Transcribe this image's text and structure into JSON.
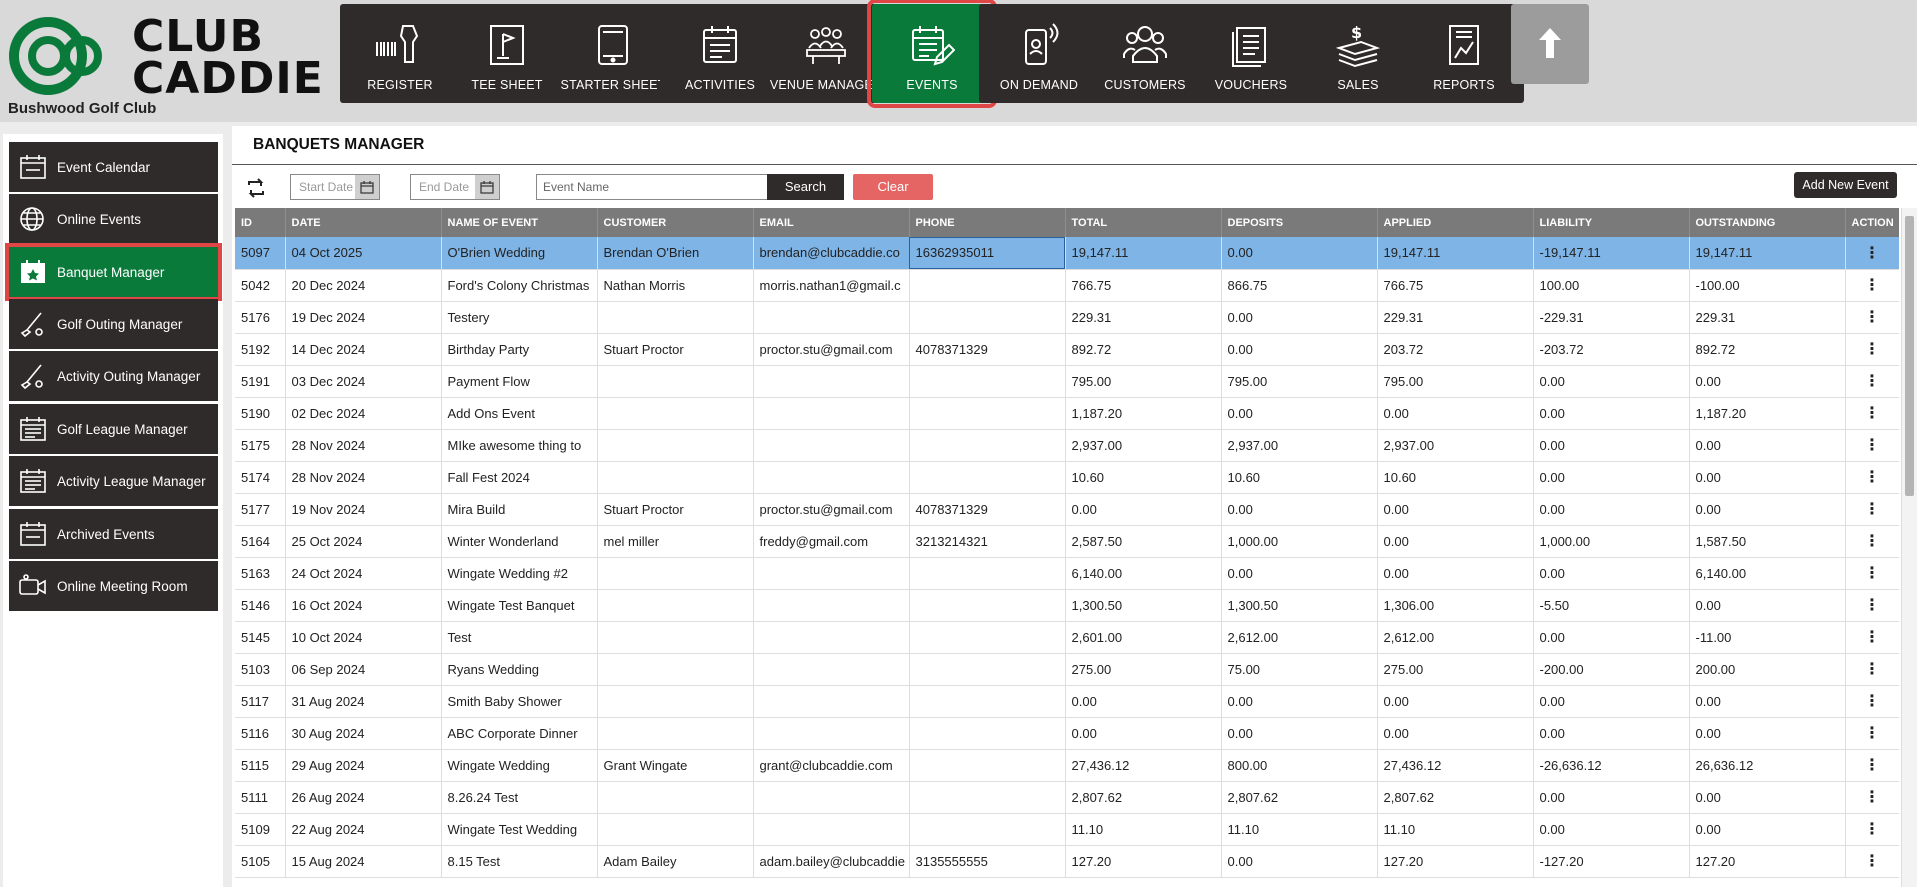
{
  "brand": {
    "line1": "CLUB",
    "line2": "CADDIE",
    "club_name": "Bushwood Golf Club"
  },
  "colors": {
    "accent_green": "#0a7a3b",
    "highlight_red": "#e04646",
    "nav_dark": "#2f2b2a",
    "row_selected": "#7fb4e6"
  },
  "nav": {
    "register": "REGISTER",
    "tee_sheet": "TEE SHEET",
    "starter_sheet": "STARTER SHEET",
    "activities": "ACTIVITIES",
    "venue_manager": "VENUE MANAGER",
    "events": "EVENTS",
    "on_demand": "ON DEMAND",
    "customers": "CUSTOMERS",
    "vouchers": "VOUCHERS",
    "sales": "SALES",
    "reports": "REPORTS"
  },
  "sidebar": {
    "items": [
      {
        "label": "Event Calendar",
        "icon": "calendar-icon"
      },
      {
        "label": "Online Events",
        "icon": "globe-icon"
      },
      {
        "label": "Banquet Manager",
        "icon": "calendar-star-icon",
        "active": true
      },
      {
        "label": "Golf Outing Manager",
        "icon": "golf-club-icon"
      },
      {
        "label": "Activity Outing Manager",
        "icon": "golf-club-icon"
      },
      {
        "label": "Golf League Manager",
        "icon": "calendar-list-icon"
      },
      {
        "label": "Activity League Manager",
        "icon": "calendar-list-icon"
      },
      {
        "label": "Archived Events",
        "icon": "calendar-icon"
      },
      {
        "label": "Online Meeting Room",
        "icon": "video-camera-icon"
      }
    ]
  },
  "main": {
    "title": "BANQUETS MANAGER",
    "filters": {
      "start_date_placeholder": "Start Date",
      "end_date_placeholder": "End Date",
      "event_name_placeholder": "Event Name",
      "search_label": "Search",
      "clear_label": "Clear",
      "add_label": "Add New Event"
    },
    "table": {
      "columns": [
        "ID",
        "DATE",
        "NAME OF EVENT",
        "CUSTOMER",
        "EMAIL",
        "PHONE",
        "TOTAL",
        "DEPOSITS",
        "APPLIED",
        "LIABILITY",
        "OUTSTANDING",
        "ACTION"
      ],
      "action_glyph": "⋮",
      "rows": [
        [
          "5097",
          "04 Oct 2025",
          "O'Brien Wedding",
          "Brendan O'Brien",
          "brendan@clubcaddie.co",
          "16362935011",
          "19,147.11",
          "0.00",
          "19,147.11",
          "-19,147.11",
          "19,147.11"
        ],
        [
          "5042",
          "20 Dec 2024",
          "Ford's Colony Christmas",
          "Nathan Morris",
          "morris.nathan1@gmail.c",
          "",
          "766.75",
          "866.75",
          "766.75",
          "100.00",
          "-100.00"
        ],
        [
          "5176",
          "19 Dec 2024",
          "Testery",
          "",
          "",
          "",
          "229.31",
          "0.00",
          "229.31",
          "-229.31",
          "229.31"
        ],
        [
          "5192",
          "14 Dec 2024",
          "Birthday Party",
          "Stuart Proctor",
          "proctor.stu@gmail.com",
          "4078371329",
          "892.72",
          "0.00",
          "203.72",
          "-203.72",
          "892.72"
        ],
        [
          "5191",
          "03 Dec 2024",
          "Payment Flow",
          "",
          "",
          "",
          "795.00",
          "795.00",
          "795.00",
          "0.00",
          "0.00"
        ],
        [
          "5190",
          "02 Dec 2024",
          "Add Ons Event",
          "",
          "",
          "",
          "1,187.20",
          "0.00",
          "0.00",
          "0.00",
          "1,187.20"
        ],
        [
          "5175",
          "28 Nov 2024",
          "MIke awesome thing to",
          "",
          "",
          "",
          "2,937.00",
          "2,937.00",
          "2,937.00",
          "0.00",
          "0.00"
        ],
        [
          "5174",
          "28 Nov 2024",
          "Fall Fest 2024",
          "",
          "",
          "",
          "10.60",
          "10.60",
          "10.60",
          "0.00",
          "0.00"
        ],
        [
          "5177",
          "19 Nov 2024",
          "Mira Build",
          "Stuart Proctor",
          "proctor.stu@gmail.com",
          "4078371329",
          "0.00",
          "0.00",
          "0.00",
          "0.00",
          "0.00"
        ],
        [
          "5164",
          "25 Oct 2024",
          "Winter Wonderland",
          "mel miller",
          "freddy@gmail.com",
          "3213214321",
          "2,587.50",
          "1,000.00",
          "0.00",
          "1,000.00",
          "1,587.50"
        ],
        [
          "5163",
          "24 Oct 2024",
          "Wingate Wedding #2",
          "",
          "",
          "",
          "6,140.00",
          "0.00",
          "0.00",
          "0.00",
          "6,140.00"
        ],
        [
          "5146",
          "16 Oct 2024",
          "Wingate Test Banquet",
          "",
          "",
          "",
          "1,300.50",
          "1,300.50",
          "1,306.00",
          "-5.50",
          "0.00"
        ],
        [
          "5145",
          "10 Oct 2024",
          "Test",
          "",
          "",
          "",
          "2,601.00",
          "2,612.00",
          "2,612.00",
          "0.00",
          "-11.00"
        ],
        [
          "5103",
          "06 Sep 2024",
          "Ryans Wedding",
          "",
          "",
          "",
          "275.00",
          "75.00",
          "275.00",
          "-200.00",
          "200.00"
        ],
        [
          "5117",
          "31 Aug 2024",
          "Smith Baby Shower",
          "",
          "",
          "",
          "0.00",
          "0.00",
          "0.00",
          "0.00",
          "0.00"
        ],
        [
          "5116",
          "30 Aug 2024",
          "ABC Corporate Dinner",
          "",
          "",
          "",
          "0.00",
          "0.00",
          "0.00",
          "0.00",
          "0.00"
        ],
        [
          "5115",
          "29 Aug 2024",
          "Wingate Wedding",
          "Grant Wingate",
          "grant@clubcaddie.com",
          "",
          "27,436.12",
          "800.00",
          "27,436.12",
          "-26,636.12",
          "26,636.12"
        ],
        [
          "5111",
          "26 Aug 2024",
          "8.26.24 Test",
          "",
          "",
          "",
          "2,807.62",
          "2,807.62",
          "2,807.62",
          "0.00",
          "0.00"
        ],
        [
          "5109",
          "22 Aug 2024",
          "Wingate Test Wedding",
          "",
          "",
          "",
          "11.10",
          "11.10",
          "11.10",
          "0.00",
          "0.00"
        ],
        [
          "5105",
          "15 Aug 2024",
          "8.15 Test",
          "Adam Bailey",
          "adam.bailey@clubcaddie",
          "3135555555",
          "127.20",
          "0.00",
          "127.20",
          "-127.20",
          "127.20"
        ]
      ]
    }
  }
}
